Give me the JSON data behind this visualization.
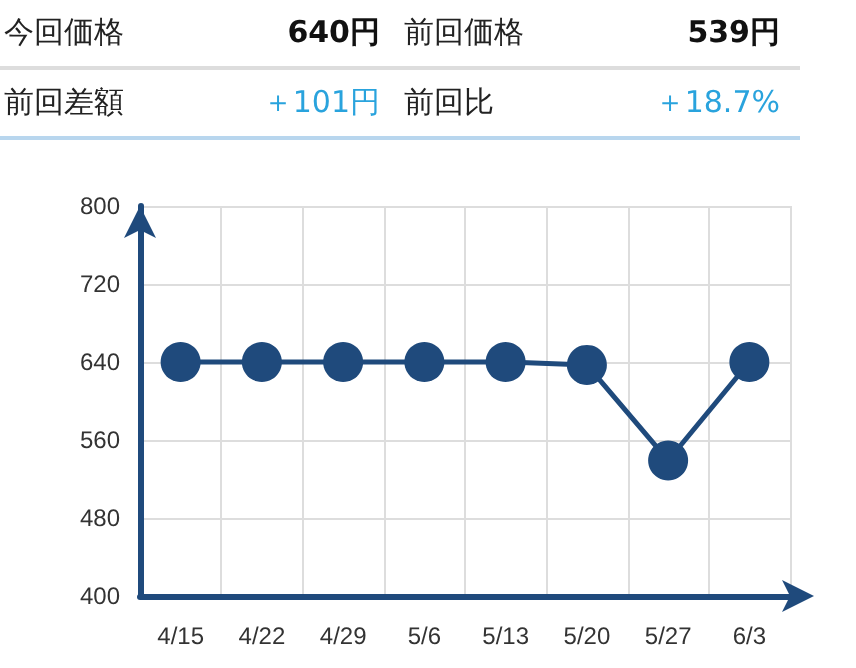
{
  "chart_data": {
    "type": "line",
    "annotations": [
      "今回価格",
      "640円",
      "前回価格",
      "539円",
      "前回差額",
      "＋101円",
      "前回比",
      "＋18.7%"
    ],
    "categories": [
      "4/15",
      "4/22",
      "4/29",
      "5/6",
      "5/13",
      "5/20",
      "5/27",
      "6/3"
    ],
    "series": [
      {
        "color": "#1f4a7c",
        "values": [
          640,
          640,
          640,
          640,
          640,
          637,
          539,
          640
        ]
      }
    ],
    "ylim": [
      400,
      800
    ],
    "yticks": [
      400,
      480,
      560,
      640,
      720,
      800
    ],
    "grid": true,
    "marker": "circle",
    "line_style": "solid"
  }
}
